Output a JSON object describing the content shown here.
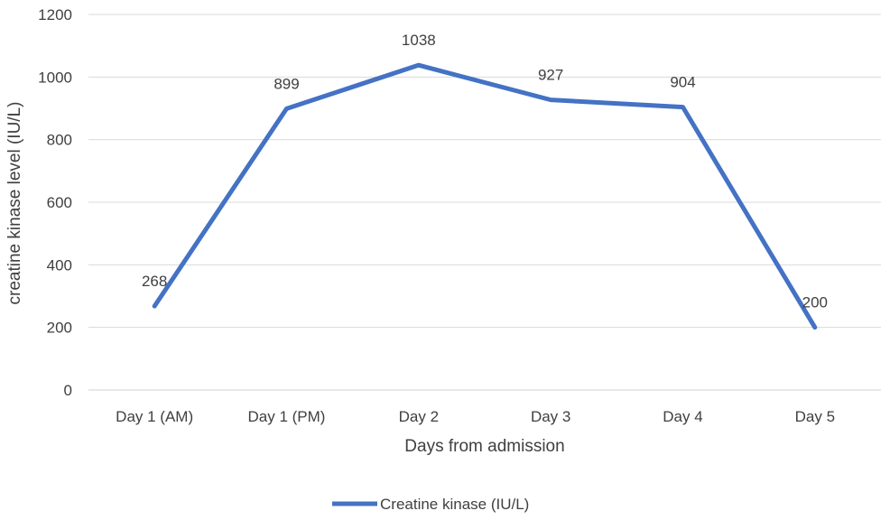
{
  "chart_data": {
    "type": "line",
    "categories": [
      "Day 1 (AM)",
      "Day 1 (PM)",
      "Day 2",
      "Day 3",
      "Day 4",
      "Day 5"
    ],
    "series": [
      {
        "name": "Creatine kinase (IU/L)",
        "values": [
          268,
          899,
          1038,
          927,
          904,
          200
        ],
        "color": "#4472C4"
      }
    ],
    "data_labels": [
      "268",
      "899",
      "1038",
      "927",
      "904",
      "200"
    ],
    "xlabel": "Days from admission",
    "ylabel": "creatine kinase level (IU/L)",
    "ylim": [
      0,
      1200
    ],
    "yticks": [
      0,
      200,
      400,
      600,
      800,
      1000,
      1200
    ],
    "ytick_labels": [
      "0",
      "200",
      "400",
      "600",
      "800",
      "1000",
      "1200"
    ],
    "grid": true,
    "legend_position": "bottom"
  }
}
